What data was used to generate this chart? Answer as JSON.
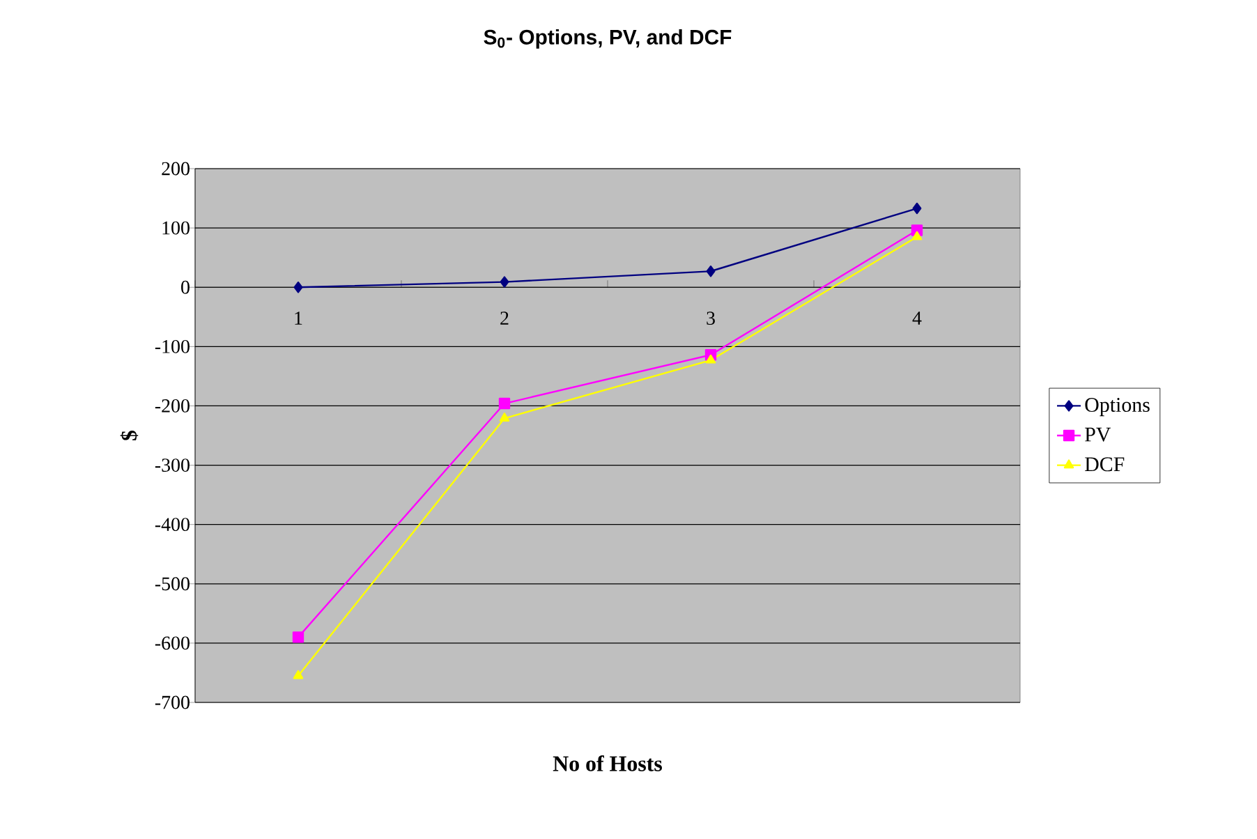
{
  "chart_data": {
    "type": "line",
    "title": "S$_{0}$- Options, PV, and DCF",
    "xlabel": "No of Hosts",
    "ylabel": "$",
    "categories": [
      "1",
      "2",
      "3",
      "4"
    ],
    "series": [
      {
        "name": "Options",
        "color": "#000080",
        "marker": "diamond",
        "values": [
          0,
          9,
          27,
          133
        ]
      },
      {
        "name": "PV",
        "color": "#ff00ff",
        "marker": "square",
        "values": [
          -590,
          -196,
          -114,
          96
        ]
      },
      {
        "name": "DCF",
        "color": "#ffff00",
        "marker": "triangle",
        "values": [
          -655,
          -221,
          -123,
          85
        ]
      }
    ],
    "ylim": [
      -700,
      200
    ],
    "yticks": [
      -700,
      -600,
      -500,
      -400,
      -300,
      -200,
      -100,
      0,
      100,
      200
    ],
    "grid": "y",
    "legend": "right"
  }
}
